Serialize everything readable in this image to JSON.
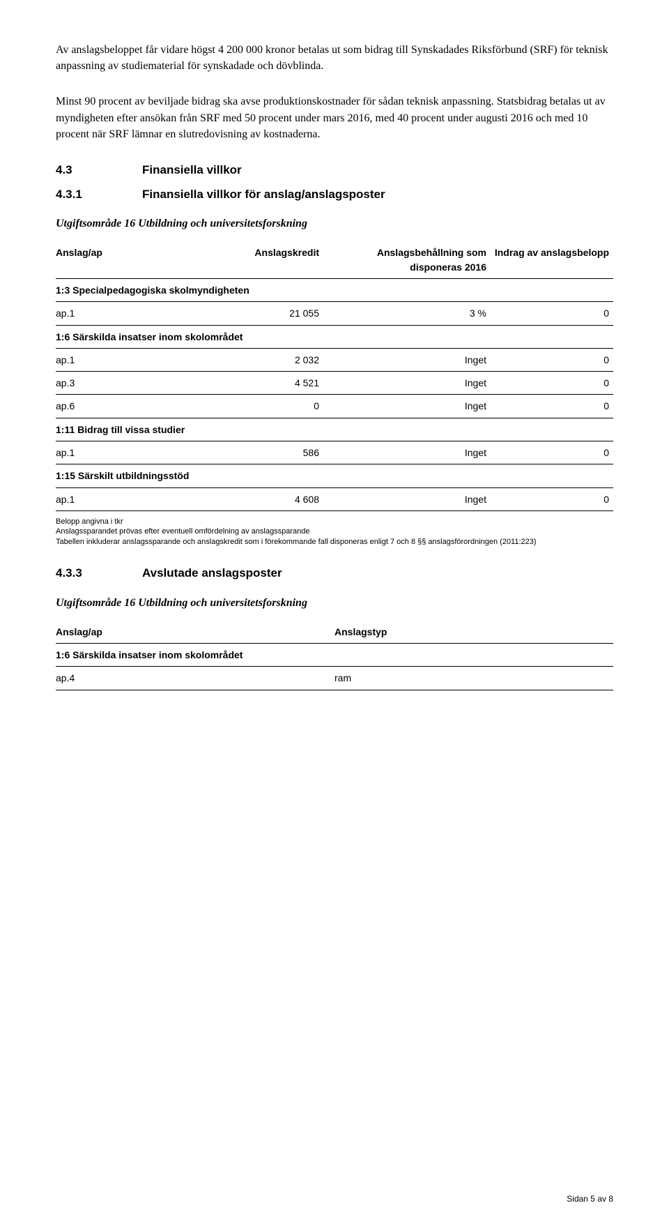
{
  "para1": "Av anslagsbeloppet får vidare högst 4 200 000 kronor betalas ut som bidrag till Synskadades Riksförbund (SRF) för teknisk anpassning av studiematerial för synskadade och dövblinda.",
  "para2": "Minst 90 procent av beviljade bidrag ska avse produktionskostnader för sådan teknisk anpassning. Statsbidrag betalas ut av myndigheten efter ansökan från SRF med 50 procent under mars 2016, med 40 procent under augusti 2016 och med 10 procent när SRF lämnar en slutredovisning av kostnaderna.",
  "sec43": {
    "num": "4.3",
    "title": "Finansiella villkor"
  },
  "sec431": {
    "num": "4.3.1",
    "title": "Finansiella villkor för anslag/anslagsposter"
  },
  "subtitle1": "Utgiftsområde 16 Utbildning och universitetsforskning",
  "table1": {
    "headers": {
      "c1": "Anslag/ap",
      "c2": "Anslagskredit",
      "c3": "Anslagsbehållning som disponeras 2016",
      "c4": "Indrag av anslagsbelopp"
    },
    "col_widths": [
      "22%",
      "26%",
      "30%",
      "22%"
    ],
    "rows": [
      {
        "group": true,
        "label": "1:3 Specialpedagogiska skolmyndigheten"
      },
      {
        "c1": "ap.1",
        "c2": "21 055",
        "c3": "3 %",
        "c4": "0"
      },
      {
        "group": true,
        "label": "1:6 Särskilda insatser inom skolområdet"
      },
      {
        "c1": "ap.1",
        "c2": "2 032",
        "c3": "Inget",
        "c4": "0"
      },
      {
        "c1": "ap.3",
        "c2": "4 521",
        "c3": "Inget",
        "c4": "0"
      },
      {
        "c1": "ap.6",
        "c2": "0",
        "c3": "Inget",
        "c4": "0"
      },
      {
        "group": true,
        "label": "1:11 Bidrag till vissa studier"
      },
      {
        "c1": "ap.1",
        "c2": "586",
        "c3": "Inget",
        "c4": "0"
      },
      {
        "group": true,
        "label": "1:15 Särskilt utbildningsstöd"
      },
      {
        "c1": "ap.1",
        "c2": "4 608",
        "c3": "Inget",
        "c4": "0"
      }
    ]
  },
  "footnote1": "Belopp angivna i tkr",
  "footnote2": "Anslagssparandet prövas efter eventuell omfördelning av anslagssparande",
  "footnote3": "Tabellen inkluderar anslagssparande och anslagskredit som i förekommande fall disponeras enligt 7 och 8 §§ anslagsförordningen (2011:223)",
  "sec433": {
    "num": "4.3.3",
    "title": "Avslutade anslagsposter"
  },
  "subtitle2": "Utgiftsområde 16 Utbildning och universitetsforskning",
  "table2": {
    "headers": {
      "c1": "Anslag/ap",
      "c2": "Anslagstyp"
    },
    "rows": [
      {
        "group": true,
        "label": "1:6 Särskilda insatser inom skolområdet"
      },
      {
        "c1": "ap.4",
        "c2": "ram"
      }
    ]
  },
  "pagefoot": "Sidan 5 av 8"
}
